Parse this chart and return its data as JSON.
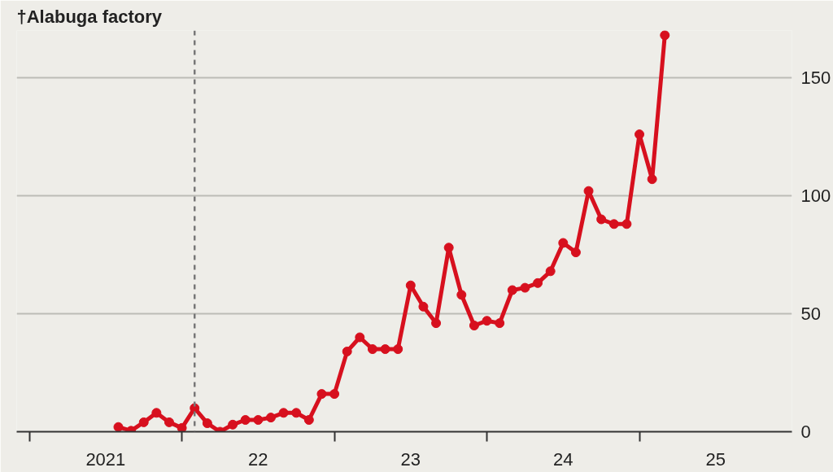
{
  "chart_data": {
    "type": "line",
    "title": "†Alabuga factory",
    "x": [
      "2021-08",
      "2021-09",
      "2021-10",
      "2021-11",
      "2021-12",
      "2022-01",
      "2022-02",
      "2022-03",
      "2022-04",
      "2022-05",
      "2022-06",
      "2022-07",
      "2022-08",
      "2022-09",
      "2022-10",
      "2022-11",
      "2022-12",
      "2023-01",
      "2023-02",
      "2023-03",
      "2023-04",
      "2023-05",
      "2023-06",
      "2023-07",
      "2023-08",
      "2023-09",
      "2023-10",
      "2023-11",
      "2023-12",
      "2024-01",
      "2024-02",
      "2024-03",
      "2024-04",
      "2024-05",
      "2024-06",
      "2024-07",
      "2024-08",
      "2024-09",
      "2024-10",
      "2024-11",
      "2024-12",
      "2025-01",
      "2025-02",
      "2025-03"
    ],
    "series": [
      {
        "color": "#d7101e",
        "values": [
          2,
          0.4,
          4,
          8,
          4,
          1.6,
          10,
          3.6,
          0,
          3,
          5,
          5,
          6,
          8,
          8,
          5,
          16,
          16,
          34,
          40,
          35,
          35,
          35,
          62,
          53,
          46,
          78,
          58,
          45,
          47,
          46,
          60,
          61,
          63,
          68,
          80,
          76,
          102,
          90,
          88,
          88,
          126,
          107,
          168
        ]
      }
    ],
    "xlim": [
      "2020-12",
      "2026-01"
    ],
    "xticks": [
      {
        "value": "2021-01",
        "label": null
      },
      {
        "value": "2021-07",
        "label": "2021"
      },
      {
        "value": "2022-01",
        "label": null
      },
      {
        "value": "2022-07",
        "label": "22"
      },
      {
        "value": "2023-01",
        "label": null
      },
      {
        "value": "2023-07",
        "label": "23"
      },
      {
        "value": "2024-01",
        "label": null
      },
      {
        "value": "2024-07",
        "label": "24"
      },
      {
        "value": "2025-01",
        "label": null
      },
      {
        "value": "2025-07",
        "label": "25"
      }
    ],
    "ylim": [
      0,
      170
    ],
    "yticks": [
      0,
      50,
      100,
      150
    ],
    "grid": "y",
    "marker": "circle",
    "line_style": "solid",
    "ref_lines": [
      {
        "axis": "x",
        "value": "2022-02",
        "label": null,
        "color": "#777777",
        "line_style": "dashed"
      }
    ]
  }
}
